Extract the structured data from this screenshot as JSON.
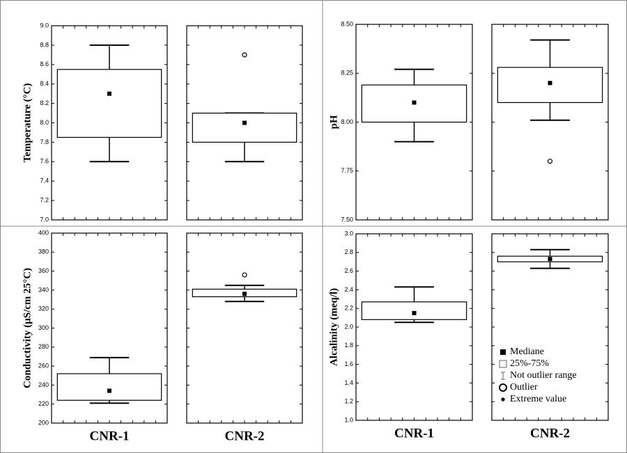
{
  "chart_data": [
    {
      "type": "box",
      "ylabel": "Temperature (°C)",
      "ylim": [
        7.0,
        9.0
      ],
      "yticks": [
        {
          "value": 7,
          "label": "7.0"
        },
        7.2,
        7.4,
        7.6,
        7.8,
        {
          "value": 8,
          "label": "8.0"
        },
        8.2,
        8.4,
        8.6,
        8.8,
        {
          "value": 9,
          "label": "9.0"
        }
      ],
      "boxes": [
        {
          "median": 8.3,
          "q1": 7.85,
          "q3": 8.55,
          "whisker_low": 7.6,
          "whisker_high": 8.8,
          "outliers": []
        },
        {
          "median": 8.0,
          "q1": 7.8,
          "q3": 8.1,
          "whisker_low": 7.6,
          "whisker_high": 8.1,
          "outliers": [
            8.7
          ]
        }
      ]
    },
    {
      "type": "box",
      "ylabel": "pH",
      "ylim": [
        7.5,
        8.5
      ],
      "yticks": [
        {
          "value": 7.5,
          "label": "7.50"
        },
        7.75,
        {
          "value": 8,
          "label": "8.00"
        },
        8.25,
        {
          "value": 8.5,
          "label": "8.50"
        }
      ],
      "boxes": [
        {
          "median": 8.1,
          "q1": 8.0,
          "q3": 8.19,
          "whisker_low": 7.9,
          "whisker_high": 8.27,
          "outliers": []
        },
        {
          "median": 8.2,
          "q1": 8.1,
          "q3": 8.28,
          "whisker_low": 8.01,
          "whisker_high": 8.42,
          "outliers": [
            7.8
          ]
        }
      ]
    },
    {
      "type": "box",
      "ylabel": "Conductivity (µS/cm 25°C)",
      "ylim": [
        200,
        400
      ],
      "yticks": [
        200,
        220,
        240,
        260,
        280,
        300,
        320,
        340,
        360,
        380,
        400
      ],
      "categories": [
        "CNR-1",
        "CNR-2"
      ],
      "boxes": [
        {
          "median": 234,
          "q1": 224,
          "q3": 252,
          "whisker_low": 221,
          "whisker_high": 269,
          "outliers": []
        },
        {
          "median": 336,
          "q1": 333,
          "q3": 341,
          "whisker_low": 328,
          "whisker_high": 345,
          "outliers": [
            356
          ]
        }
      ]
    },
    {
      "type": "box",
      "ylabel": "Alcalinity (meq/l)",
      "ylim": [
        1.0,
        3.0
      ],
      "yticks": [
        {
          "value": 1,
          "label": "1.0"
        },
        1.2,
        1.4,
        1.6,
        1.8,
        {
          "value": 2,
          "label": "2.0"
        },
        2.2,
        2.4,
        2.6,
        2.8,
        {
          "value": 3,
          "label": "3.0"
        }
      ],
      "categories": [
        "CNR-1",
        "CNR-2"
      ],
      "legend": [
        "Mediane",
        "25%-75%",
        "Not outlier range",
        "Outlier",
        "Extreme value"
      ],
      "legend_position": "lower right",
      "boxes": [
        {
          "median": 2.15,
          "q1": 2.08,
          "q3": 2.27,
          "whisker_low": 2.05,
          "whisker_high": 2.43,
          "outliers": []
        },
        {
          "median": 2.73,
          "q1": 2.7,
          "q3": 2.76,
          "whisker_low": 2.63,
          "whisker_high": 2.83,
          "outliers": []
        }
      ]
    }
  ]
}
